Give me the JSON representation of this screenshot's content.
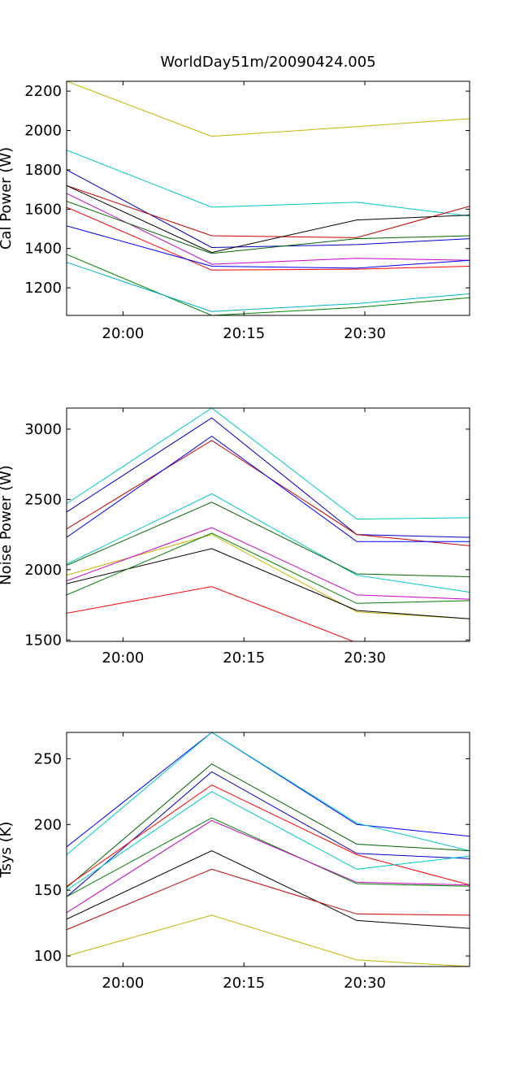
{
  "figure_title": "WorldDay51m/20090424.005",
  "chart_data": [
    {
      "type": "line",
      "title": "WorldDay51m/20090424.005",
      "xlabel": "",
      "ylabel": "Cal Power (W)",
      "x": [
        "19:53",
        "20:11",
        "20:29",
        "20:43"
      ],
      "xticks": [
        "20:00",
        "20:15",
        "20:30"
      ],
      "yticks": [
        "1200",
        "1400",
        "1600",
        "1800",
        "2000",
        "2200"
      ],
      "ylim": [
        1060,
        2250
      ],
      "grid": false,
      "series": [
        {
          "color": "#c8b400",
          "values": [
            2250,
            1970,
            2020,
            2060
          ]
        },
        {
          "color": "#00c8c8",
          "values": [
            1900,
            1610,
            1635,
            1565
          ]
        },
        {
          "color": "#0000c8",
          "values": [
            1800,
            1405,
            1420,
            1450
          ]
        },
        {
          "color": "#c80000",
          "values": [
            1720,
            1465,
            1455,
            1615
          ]
        },
        {
          "color": "#000000",
          "values": [
            1720,
            1380,
            1545,
            1570
          ]
        },
        {
          "color": "#c800c8",
          "values": [
            1680,
            1320,
            1350,
            1340
          ]
        },
        {
          "color": "#006400",
          "values": [
            1640,
            1375,
            1450,
            1465
          ]
        },
        {
          "color": "#ff0000",
          "values": [
            1610,
            1290,
            1295,
            1310
          ]
        },
        {
          "color": "#0000ff",
          "values": [
            1515,
            1310,
            1300,
            1340
          ]
        },
        {
          "color": "#008000",
          "values": [
            1370,
            1060,
            1100,
            1150
          ]
        },
        {
          "color": "#00b4c8",
          "values": [
            1330,
            1080,
            1120,
            1170
          ]
        }
      ]
    },
    {
      "type": "line",
      "title": "",
      "xlabel": "",
      "ylabel": "Noise Power (W)",
      "x": [
        "19:53",
        "20:11",
        "20:29",
        "20:43"
      ],
      "xticks": [
        "20:00",
        "20:15",
        "20:30"
      ],
      "yticks": [
        "1500",
        "2000",
        "2500",
        "3000"
      ],
      "ylim": [
        1490,
        3150
      ],
      "grid": false,
      "series": [
        {
          "color": "#00c8c8",
          "values": [
            2470,
            3150,
            2360,
            2370
          ]
        },
        {
          "color": "#0000c8",
          "values": [
            2410,
            3080,
            2250,
            2230
          ]
        },
        {
          "color": "#c80000",
          "values": [
            2290,
            2920,
            2250,
            2170
          ]
        },
        {
          "color": "#0000ff",
          "values": [
            2230,
            2950,
            2200,
            2200
          ]
        },
        {
          "color": "#00c8c8",
          "values": [
            2040,
            2540,
            1960,
            1840
          ]
        },
        {
          "color": "#006400",
          "values": [
            2030,
            2480,
            1970,
            1950
          ]
        },
        {
          "color": "#c8b400",
          "values": [
            1960,
            2250,
            1700,
            1650
          ]
        },
        {
          "color": "#c800c8",
          "values": [
            1920,
            2300,
            1820,
            1790
          ]
        },
        {
          "color": "#000000",
          "values": [
            1900,
            2150,
            1710,
            1650
          ]
        },
        {
          "color": "#008000",
          "values": [
            1820,
            2260,
            1760,
            1780
          ]
        },
        {
          "color": "#ff0000",
          "values": [
            1690,
            1880,
            1480,
            1490
          ]
        }
      ]
    },
    {
      "type": "line",
      "title": "",
      "xlabel": "",
      "ylabel": "Tsys (K)",
      "x": [
        "19:53",
        "20:11",
        "20:29",
        "20:43"
      ],
      "xticks": [
        "20:00",
        "20:15",
        "20:30"
      ],
      "yticks": [
        "100",
        "150",
        "200",
        "250"
      ],
      "ylim": [
        92,
        270
      ],
      "grid": false,
      "series": [
        {
          "color": "#0000ff",
          "values": [
            183,
            270,
            200,
            191
          ]
        },
        {
          "color": "#00c8c8",
          "values": [
            177,
            270,
            201,
            180
          ]
        },
        {
          "color": "#006400",
          "values": [
            152,
            246,
            185,
            180
          ]
        },
        {
          "color": "#0000c8",
          "values": [
            145,
            240,
            178,
            174
          ]
        },
        {
          "color": "#ff0000",
          "values": [
            153,
            230,
            177,
            154
          ]
        },
        {
          "color": "#00c8c8",
          "values": [
            150,
            225,
            166,
            176
          ]
        },
        {
          "color": "#008000",
          "values": [
            145,
            205,
            155,
            153
          ]
        },
        {
          "color": "#c800c8",
          "values": [
            133,
            203,
            156,
            154
          ]
        },
        {
          "color": "#000000",
          "values": [
            128,
            180,
            127,
            121
          ]
        },
        {
          "color": "#c80000",
          "values": [
            120,
            166,
            132,
            131
          ]
        },
        {
          "color": "#c8b400",
          "values": [
            100,
            131,
            97,
            92
          ]
        }
      ]
    }
  ]
}
